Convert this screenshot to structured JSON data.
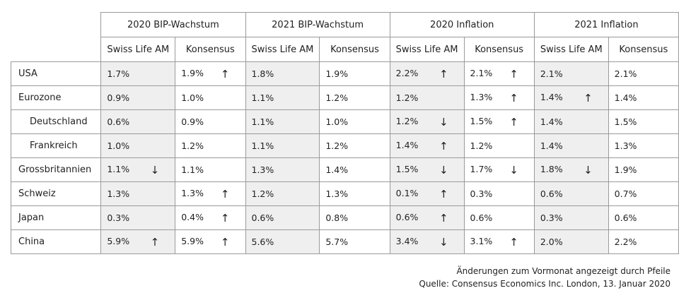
{
  "table": {
    "groups": [
      "2020 BIP-Wachstum",
      "2021 BIP-Wachstum",
      "2020 Inflation",
      "2021 Inflation"
    ],
    "subheaders": [
      "Swiss Life AM",
      "Konsensus",
      "Swiss Life AM",
      "Konsensus",
      "Swiss Life AM",
      "Konsensus",
      "Swiss Life AM",
      "Konsensus"
    ],
    "rows": [
      {
        "label": "USA",
        "cells": [
          {
            "value": "1.7%"
          },
          {
            "value": "1.9%",
            "arrow": "↑"
          },
          {
            "value": "1.8%"
          },
          {
            "value": "1.9%"
          },
          {
            "value": "2.2%",
            "arrow": "↑"
          },
          {
            "value": "2.1%",
            "arrow": "↑"
          },
          {
            "value": "2.1%"
          },
          {
            "value": "2.1%"
          }
        ]
      },
      {
        "label": "Eurozone",
        "cells": [
          {
            "value": "0.9%"
          },
          {
            "value": "1.0%"
          },
          {
            "value": "1.1%"
          },
          {
            "value": "1.2%"
          },
          {
            "value": "1.2%"
          },
          {
            "value": "1.3%",
            "arrow": "↑"
          },
          {
            "value": "1.4%",
            "arrow": "↑"
          },
          {
            "value": "1.4%"
          }
        ]
      },
      {
        "label": "Deutschland",
        "cells": [
          {
            "value": "0.6%"
          },
          {
            "value": "0.9%"
          },
          {
            "value": "1.1%"
          },
          {
            "value": "1.0%"
          },
          {
            "value": "1.2%",
            "arrow": "↓"
          },
          {
            "value": "1.5%",
            "arrow": "↑"
          },
          {
            "value": "1.4%"
          },
          {
            "value": "1.5%"
          }
        ]
      },
      {
        "label": "Frankreich",
        "cells": [
          {
            "value": "1.0%"
          },
          {
            "value": "1.2%"
          },
          {
            "value": "1.1%"
          },
          {
            "value": "1.2%"
          },
          {
            "value": "1.4%",
            "arrow": "↑"
          },
          {
            "value": "1.2%"
          },
          {
            "value": "1.4%"
          },
          {
            "value": "1.3%"
          }
        ]
      },
      {
        "label": "Grossbritannien",
        "cells": [
          {
            "value": "1.1%",
            "arrow": "↓"
          },
          {
            "value": "1.1%"
          },
          {
            "value": "1.3%"
          },
          {
            "value": "1.4%"
          },
          {
            "value": "1.5%",
            "arrow": "↓"
          },
          {
            "value": "1.7%",
            "arrow": "↓"
          },
          {
            "value": "1.8%",
            "arrow": "↓"
          },
          {
            "value": "1.9%"
          }
        ]
      },
      {
        "label": "Schweiz",
        "cells": [
          {
            "value": "1.3%"
          },
          {
            "value": "1.3%",
            "arrow": "↑"
          },
          {
            "value": "1.2%"
          },
          {
            "value": "1.3%"
          },
          {
            "value": "0.1%",
            "arrow": "↑"
          },
          {
            "value": "0.3%"
          },
          {
            "value": "0.6%"
          },
          {
            "value": "0.7%"
          }
        ]
      },
      {
        "label": "Japan",
        "cells": [
          {
            "value": "0.3%"
          },
          {
            "value": "0.4%",
            "arrow": "↑"
          },
          {
            "value": "0.6%"
          },
          {
            "value": "0.8%"
          },
          {
            "value": "0.6%",
            "arrow": "↑"
          },
          {
            "value": "0.6%"
          },
          {
            "value": "0.3%"
          },
          {
            "value": "0.6%"
          }
        ]
      },
      {
        "label": "China",
        "cells": [
          {
            "value": "5.9%",
            "arrow": "↑"
          },
          {
            "value": "5.9%",
            "arrow": "↑"
          },
          {
            "value": "5.6%"
          },
          {
            "value": "5.7%"
          },
          {
            "value": "3.4%",
            "arrow": "↓"
          },
          {
            "value": "3.1%",
            "arrow": "↑"
          },
          {
            "value": "2.0%"
          },
          {
            "value": "2.2%"
          }
        ]
      }
    ]
  },
  "footer": {
    "note": "Änderungen zum Vormonat angezeigt durch Pfeile",
    "source": "Quelle: Consensus Economics Inc. London, 13. Januar 2020"
  }
}
